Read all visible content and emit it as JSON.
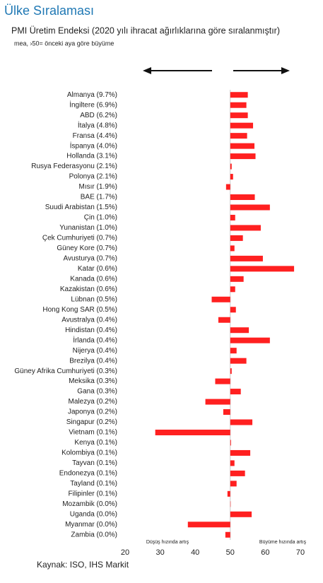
{
  "chart_data": {
    "type": "bar",
    "orientation": "horizontal",
    "title": "Ülke Sıralaması",
    "subtitle": "PMI Üretim Endeksi (2020 yılı ihracat ağırlıklarına göre sıralanmıştır)",
    "note": "mea, ›50= önceki aya göre büyüme",
    "annotations": [
      "Düşüş hızında artış",
      "Büyüme hızında artış"
    ],
    "source": "Kaynak: ISO, IHS Markit",
    "categories": [
      "Almanya (9.7%)",
      "İngiltere (6.9%)",
      "ABD (6.2%)",
      "İtalya (4.8%)",
      "Fransa (4.4%)",
      "İspanya (4.0%)",
      "Hollanda (3.1%)",
      "Rusya Federasyonu (2.1%)",
      "Polonya (2.1%)",
      "Mısır (1.9%)",
      "BAE (1.7%)",
      "Suudi Arabistan (1.5%)",
      "Çin (1.0%)",
      "Yunanistan (1.0%)",
      "Çek Cumhuriyeti (0.7%)",
      "Güney Kore (0.7%)",
      "Avusturya (0.7%)",
      "Katar (0.6%)",
      "Kanada (0.6%)",
      "Kazakistan (0.6%)",
      "Lübnan (0.5%)",
      "Hong Kong SAR (0.5%)",
      "Avustralya (0.4%)",
      "Hindistan (0.4%)",
      "İrlanda (0.4%)",
      "Nijerya (0.4%)",
      "Brezilya (0.4%)",
      "Güney Afrika Cumhuriyeti (0.3%)",
      "Meksika (0.3%)",
      "Gana (0.3%)",
      "Malezya (0.2%)",
      "Japonya (0.2%)",
      "Singapur (0.2%)",
      "Vietnam (0.1%)",
      "Kenya (0.1%)",
      "Kolombiya (0.1%)",
      "Tayvan (0.1%)",
      "Endonezya (0.1%)",
      "Tayland (0.1%)",
      "Filipinler (0.1%)",
      "Mozambik (0.0%)",
      "Uganda (0.0%)",
      "Myanmar (0.0%)",
      "Zambia (0.0%)"
    ],
    "values": [
      55.0,
      54.6,
      55.0,
      56.5,
      54.8,
      56.9,
      57.2,
      50.4,
      50.8,
      48.8,
      57.0,
      61.3,
      51.4,
      58.7,
      53.6,
      51.2,
      59.3,
      68.2,
      53.8,
      51.4,
      44.7,
      51.6,
      46.6,
      55.3,
      61.3,
      51.8,
      54.6,
      50.4,
      45.7,
      53.0,
      42.9,
      48.0,
      56.3,
      28.6,
      50.2,
      55.7,
      51.2,
      54.2,
      51.8,
      49.2,
      50.1,
      56.1,
      37.9,
      48.6
    ],
    "color": "#ff2020",
    "base": 50,
    "xlim": [
      20,
      70
    ],
    "xticks": [
      20,
      30,
      40,
      50,
      60,
      70
    ]
  }
}
